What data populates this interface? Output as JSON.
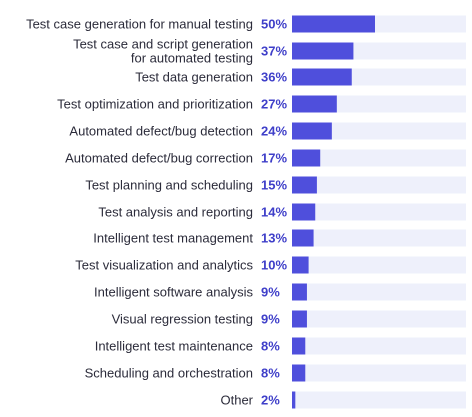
{
  "colors": {
    "bar": "#4f4fdc",
    "track": "#eef0fb",
    "value_text": "#3f3fc9",
    "label_text": "#2b2b3a"
  },
  "chart_data": {
    "type": "bar",
    "orientation": "horizontal",
    "categories": [
      [
        "Test case generation for manual testing"
      ],
      [
        "Test case and script generation",
        "for automated testing"
      ],
      [
        "Test data generation"
      ],
      [
        "Test optimization and prioritization"
      ],
      [
        "Automated defect/bug detection"
      ],
      [
        "Automated defect/bug correction"
      ],
      [
        "Test planning and scheduling"
      ],
      [
        "Test analysis and reporting"
      ],
      [
        "Intelligent test management"
      ],
      [
        "Test visualization and analytics"
      ],
      [
        "Intelligent software analysis"
      ],
      [
        "Visual regression testing"
      ],
      [
        "Intelligent test maintenance"
      ],
      [
        "Scheduling and orchestration"
      ],
      [
        "Other"
      ]
    ],
    "values": [
      50,
      37,
      36,
      27,
      24,
      17,
      15,
      14,
      13,
      10,
      9,
      9,
      8,
      8,
      2
    ],
    "value_labels": [
      "50%",
      "37%",
      "36%",
      "27%",
      "24%",
      "17%",
      "15%",
      "14%",
      "13%",
      "10%",
      "9%",
      "9%",
      "8%",
      "8%",
      "2%"
    ],
    "xlim": [
      0,
      100
    ],
    "unit": "%",
    "grid": false,
    "legend": "none"
  }
}
